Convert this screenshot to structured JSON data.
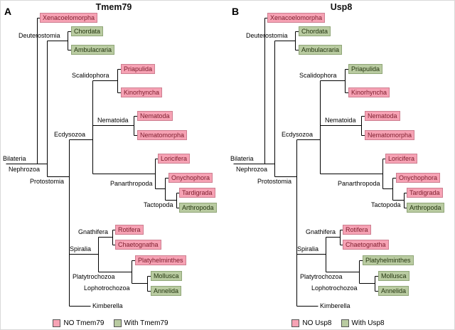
{
  "colors": {
    "no": "#F6A2B4",
    "with": "#B9CBA1"
  },
  "panels": [
    {
      "letter": "A",
      "title": "Tmem79",
      "clades": [
        "Bilateria",
        "Nephrozoa",
        "Protostomia",
        "Deuterostomia",
        "Scalidophora",
        "Ecdysozoa",
        "Nematoida",
        "Panarthropoda",
        "Tactopoda",
        "Gnathifera",
        "Spiralia",
        "Platytrochozoa",
        "Lophotrochozoa"
      ],
      "leaves": [
        {
          "name": "Xenacoelomorpha",
          "status": "no"
        },
        {
          "name": "Chordata",
          "status": "with"
        },
        {
          "name": "Ambulacraria",
          "status": "with"
        },
        {
          "name": "Priapulida",
          "status": "no"
        },
        {
          "name": "Kinorhyncha",
          "status": "no"
        },
        {
          "name": "Nematoda",
          "status": "no"
        },
        {
          "name": "Nematomorpha",
          "status": "no"
        },
        {
          "name": "Loricifera",
          "status": "no"
        },
        {
          "name": "Onychophora",
          "status": "no"
        },
        {
          "name": "Tardigrada",
          "status": "no"
        },
        {
          "name": "Arthropoda",
          "status": "with"
        },
        {
          "name": "Rotifera",
          "status": "no"
        },
        {
          "name": "Chaetognatha",
          "status": "no"
        },
        {
          "name": "Platyhelminthes",
          "status": "no"
        },
        {
          "name": "Mollusca",
          "status": "with"
        },
        {
          "name": "Annelida",
          "status": "with"
        },
        {
          "name": "Kimberella",
          "status": "plain"
        }
      ],
      "legend": [
        {
          "label": "NO Tmem79",
          "status": "no"
        },
        {
          "label": "With Tmem79",
          "status": "with"
        }
      ]
    },
    {
      "letter": "B",
      "title": "Usp8",
      "clades": [
        "Bilateria",
        "Nephrozoa",
        "Protostomia",
        "Deuterostomia",
        "Scalidophora",
        "Ecdysozoa",
        "Nematoida",
        "Panarthropoda",
        "Tactopoda",
        "Gnathifera",
        "Spiralia",
        "Platytrochozoa",
        "Lophotrochozoa"
      ],
      "leaves": [
        {
          "name": "Xenacoelomorpha",
          "status": "no"
        },
        {
          "name": "Chordata",
          "status": "with"
        },
        {
          "name": "Ambulacraria",
          "status": "with"
        },
        {
          "name": "Priapulida",
          "status": "with"
        },
        {
          "name": "Kinorhyncha",
          "status": "no"
        },
        {
          "name": "Nematoda",
          "status": "no"
        },
        {
          "name": "Nematomorpha",
          "status": "no"
        },
        {
          "name": "Loricifera",
          "status": "no"
        },
        {
          "name": "Onychophora",
          "status": "no"
        },
        {
          "name": "Tardigrada",
          "status": "no"
        },
        {
          "name": "Arthropoda",
          "status": "with"
        },
        {
          "name": "Rotifera",
          "status": "no"
        },
        {
          "name": "Chaetognatha",
          "status": "no"
        },
        {
          "name": "Platyhelminthes",
          "status": "with"
        },
        {
          "name": "Mollusca",
          "status": "with"
        },
        {
          "name": "Annelida",
          "status": "with"
        },
        {
          "name": "Kimberella",
          "status": "plain"
        }
      ],
      "legend": [
        {
          "label": "NO Usp8",
          "status": "no"
        },
        {
          "label": "With Usp8",
          "status": "with"
        }
      ]
    }
  ]
}
